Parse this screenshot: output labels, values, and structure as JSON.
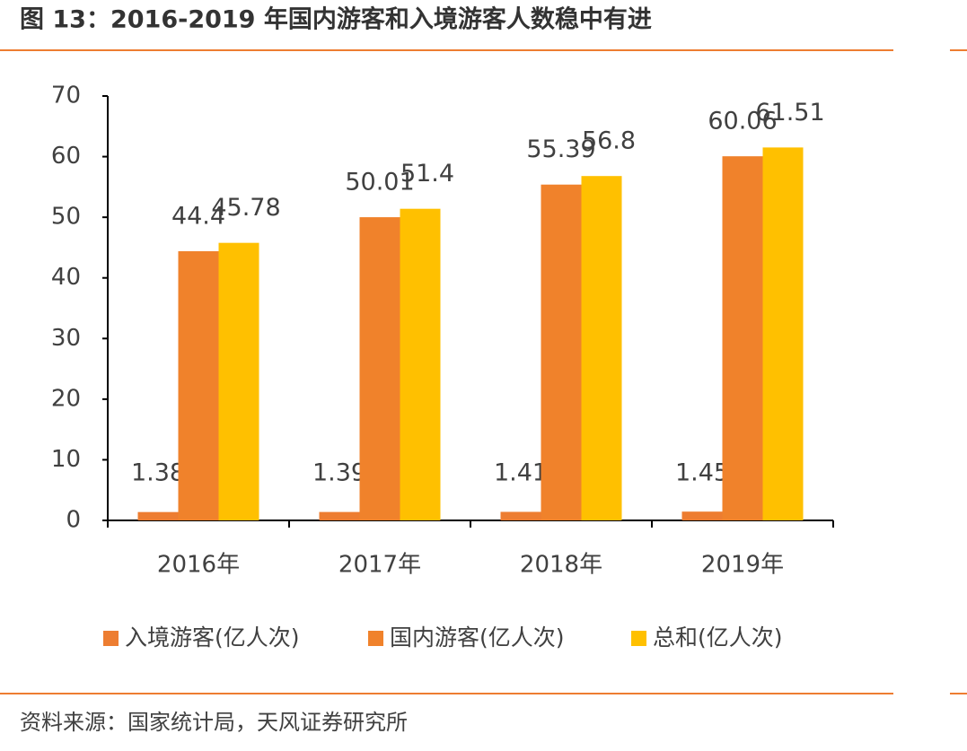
{
  "title": "图 13：2016-2019 年国内游客和入境游客人数稳中有进",
  "source": "资料来源：国家统计局，天风证券研究所",
  "chart_data": {
    "type": "bar",
    "categories": [
      "2016年",
      "2017年",
      "2018年",
      "2019年"
    ],
    "series": [
      {
        "name": "入境游客(亿人次)",
        "color": "#ED7D31",
        "values": [
          1.38,
          1.39,
          1.41,
          1.45
        ]
      },
      {
        "name": "国内游客(亿人次)",
        "color": "#F0822B",
        "values": [
          44.4,
          50.01,
          55.39,
          60.06
        ]
      },
      {
        "name": "总和(亿人次)",
        "color": "#FFC000",
        "values": [
          45.78,
          51.4,
          56.8,
          61.51
        ]
      }
    ],
    "ylim": [
      0,
      70
    ],
    "yticks": [
      0,
      10,
      20,
      30,
      40,
      50,
      60,
      70
    ],
    "grid": false,
    "legend": "bottom"
  }
}
